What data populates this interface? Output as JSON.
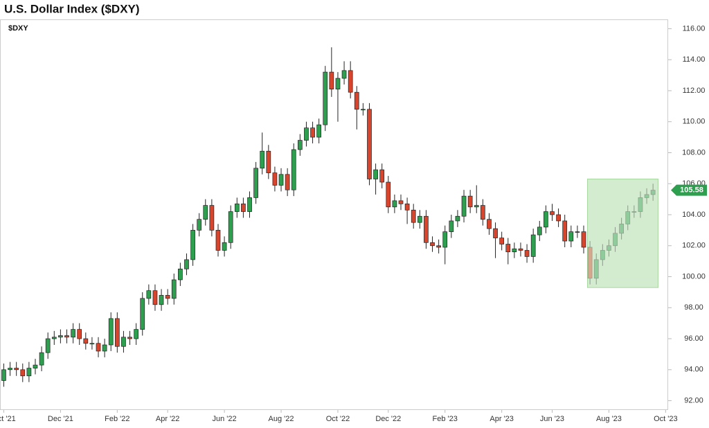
{
  "chart_data": {
    "type": "candlestick",
    "title": "U.S. Dollar Index ($DXY)",
    "symbol": "$DXY",
    "open": [
      93.3,
      94.0,
      94.1,
      94.0,
      93.6,
      94.1,
      94.3,
      95.1,
      96.0,
      96.1,
      96.2,
      96.1,
      96.6,
      96.0,
      95.7,
      95.7,
      95.2,
      95.6,
      97.3,
      95.5,
      96.1,
      96.0,
      96.6,
      98.6,
      99.1,
      98.2,
      98.8,
      98.6,
      99.8,
      100.5,
      101.1,
      103.0,
      103.7,
      104.6,
      103.0,
      101.7,
      102.2,
      104.2,
      104.7,
      104.2,
      105.1,
      107.0,
      108.1,
      106.7,
      105.9,
      106.6,
      105.6,
      108.2,
      108.8,
      109.6,
      109.0,
      109.8,
      113.2,
      112.1,
      112.8,
      113.3,
      111.9,
      110.8,
      110.8,
      106.3,
      106.9,
      106.1,
      104.5,
      104.9,
      104.7,
      104.3,
      103.5,
      103.9,
      102.2,
      102.0,
      101.9,
      102.9,
      103.6,
      103.9,
      105.2,
      104.5,
      104.6,
      103.7,
      103.1,
      102.5,
      102.1,
      101.6,
      101.8,
      101.7,
      101.3,
      102.7,
      103.2,
      104.2,
      104.0,
      103.6,
      102.3,
      102.9,
      102.9,
      101.9,
      99.9,
      101.1,
      101.7,
      102.0,
      102.8,
      103.4,
      104.2,
      104.2,
      105.1,
      105.3
    ],
    "high": [
      94.4,
      94.5,
      94.5,
      94.4,
      94.5,
      94.7,
      95.5,
      96.4,
      96.5,
      96.6,
      96.6,
      97.0,
      97.0,
      96.4,
      96.1,
      96.1,
      96.0,
      97.7,
      97.7,
      96.5,
      96.5,
      97.0,
      99.0,
      99.5,
      99.5,
      99.2,
      99.2,
      100.2,
      100.9,
      101.5,
      103.4,
      104.1,
      105.0,
      105.0,
      103.4,
      102.6,
      104.6,
      105.1,
      105.1,
      105.5,
      107.4,
      109.3,
      108.5,
      107.1,
      107.0,
      107.0,
      108.6,
      109.2,
      110.0,
      110.0,
      110.2,
      113.6,
      114.8,
      113.2,
      113.9,
      113.9,
      112.3,
      111.2,
      111.2,
      107.3,
      107.3,
      106.5,
      105.3,
      105.3,
      105.1,
      104.7,
      104.3,
      104.3,
      102.6,
      102.4,
      103.3,
      104.0,
      104.3,
      105.6,
      105.6,
      105.9,
      105.0,
      104.1,
      103.5,
      102.9,
      102.5,
      102.2,
      102.2,
      102.1,
      103.1,
      103.6,
      104.6,
      104.7,
      104.4,
      104.0,
      103.3,
      103.3,
      103.3,
      102.3,
      101.5,
      102.1,
      102.4,
      103.2,
      103.8,
      104.6,
      104.6,
      105.5,
      105.7,
      106.0
    ],
    "low": [
      92.9,
      93.6,
      93.6,
      93.2,
      93.2,
      93.7,
      93.9,
      94.7,
      95.6,
      95.7,
      95.7,
      95.7,
      95.6,
      95.3,
      95.3,
      94.8,
      94.8,
      95.2,
      95.1,
      95.1,
      95.6,
      95.6,
      96.2,
      98.2,
      97.8,
      97.8,
      98.2,
      98.2,
      99.4,
      100.1,
      100.7,
      102.6,
      103.3,
      102.6,
      101.3,
      101.3,
      101.8,
      103.8,
      103.8,
      103.8,
      104.7,
      106.6,
      106.3,
      105.5,
      105.5,
      105.2,
      105.2,
      107.8,
      108.4,
      108.6,
      108.6,
      109.4,
      111.6,
      110.0,
      112.4,
      111.5,
      109.5,
      110.4,
      105.9,
      105.3,
      105.7,
      104.1,
      104.1,
      104.3,
      103.4,
      103.1,
      103.1,
      101.8,
      101.6,
      101.5,
      100.8,
      102.5,
      103.2,
      103.5,
      104.1,
      104.1,
      103.3,
      102.7,
      101.2,
      101.7,
      100.8,
      101.2,
      101.3,
      100.9,
      100.9,
      102.3,
      102.8,
      103.6,
      103.2,
      101.9,
      101.9,
      102.5,
      101.5,
      99.5,
      99.5,
      100.7,
      101.3,
      101.6,
      102.4,
      103.0,
      103.8,
      103.8,
      104.7,
      104.9
    ],
    "close": [
      94.0,
      94.1,
      94.0,
      93.6,
      94.1,
      94.3,
      95.1,
      96.0,
      96.1,
      96.2,
      96.1,
      96.6,
      96.0,
      95.7,
      95.7,
      95.2,
      95.6,
      97.3,
      95.5,
      96.1,
      96.0,
      96.6,
      98.6,
      99.1,
      98.2,
      98.8,
      98.6,
      99.8,
      100.5,
      101.1,
      103.0,
      103.7,
      104.6,
      103.0,
      101.7,
      102.2,
      104.2,
      104.7,
      104.2,
      105.1,
      107.0,
      108.1,
      106.7,
      105.9,
      106.6,
      105.6,
      108.2,
      108.8,
      109.6,
      109.0,
      109.8,
      113.2,
      112.1,
      112.8,
      113.3,
      111.9,
      110.8,
      110.8,
      106.3,
      106.9,
      106.1,
      104.5,
      104.9,
      104.7,
      104.3,
      103.5,
      103.9,
      102.2,
      102.0,
      101.9,
      102.9,
      103.6,
      103.9,
      105.2,
      104.5,
      104.6,
      103.7,
      103.1,
      102.5,
      102.1,
      101.6,
      101.8,
      101.7,
      101.3,
      102.7,
      103.2,
      104.2,
      104.0,
      103.6,
      102.3,
      102.9,
      102.9,
      101.9,
      99.9,
      101.1,
      101.7,
      102.0,
      102.8,
      103.4,
      104.2,
      104.2,
      105.1,
      105.3,
      105.58
    ],
    "up_color": "#2e9e4f",
    "down_color": "#d9452c",
    "xlim": [
      -0.6,
      105.4
    ],
    "xticks": [
      {
        "value": 0,
        "label": "Oct '21"
      },
      {
        "value": 9,
        "label": "Dec '21"
      },
      {
        "value": 18,
        "label": "Feb '22"
      },
      {
        "value": 26,
        "label": "Apr '22"
      },
      {
        "value": 35,
        "label": "Jun '22"
      },
      {
        "value": 44,
        "label": "Aug '22"
      },
      {
        "value": 53,
        "label": "Oct '22"
      },
      {
        "value": 61,
        "label": "Dec '22"
      },
      {
        "value": 70,
        "label": "Feb '23"
      },
      {
        "value": 79,
        "label": "Apr '23"
      },
      {
        "value": 87,
        "label": "Jun '23"
      },
      {
        "value": 96,
        "label": "Aug '23"
      },
      {
        "value": 105,
        "label": "Oct '23"
      }
    ],
    "ylim": [
      91.4,
      116.6
    ],
    "yticks": [
      {
        "value": 92,
        "label": "92.00"
      },
      {
        "value": 94,
        "label": "94.00"
      },
      {
        "value": 96,
        "label": "96.00"
      },
      {
        "value": 98,
        "label": "98.00"
      },
      {
        "value": 100,
        "label": "100.00"
      },
      {
        "value": 102,
        "label": "102.00"
      },
      {
        "value": 104,
        "label": "104.00"
      },
      {
        "value": 106,
        "label": "106.00"
      },
      {
        "value": 108,
        "label": "108.00"
      },
      {
        "value": 110,
        "label": "110.00"
      },
      {
        "value": 112,
        "label": "112.00"
      },
      {
        "value": 114,
        "label": "114.00"
      },
      {
        "value": 116,
        "label": "116.00"
      }
    ],
    "highlight": {
      "x": [
        92.6,
        103.8
      ],
      "y": [
        99.3,
        106.3
      ],
      "color": "#a8d8a0"
    }
  }
}
